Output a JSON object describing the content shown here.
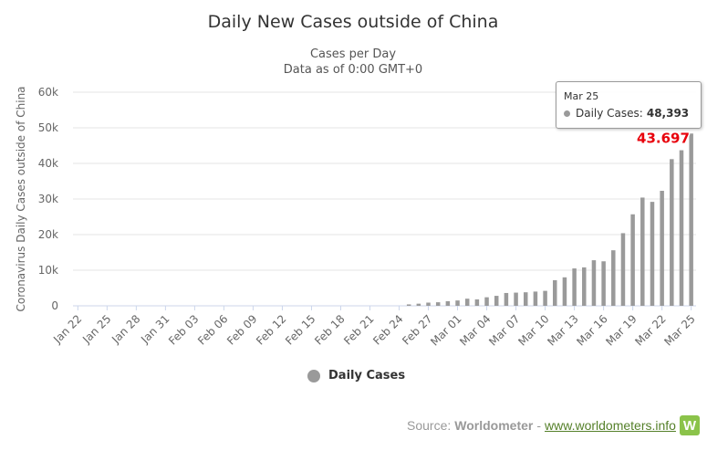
{
  "chart_data": {
    "type": "bar",
    "title": "Daily New Cases outside of China",
    "subtitle": "Cases per Day",
    "subtitle2": "Data as of 0:00 GMT+0",
    "ylabel": "Coronavirus Daily Cases outside of China",
    "ylim": [
      0,
      60000
    ],
    "yticks": [
      "0",
      "10k",
      "20k",
      "30k",
      "40k",
      "50k",
      "60k"
    ],
    "ytick_values": [
      0,
      10000,
      20000,
      30000,
      40000,
      50000,
      60000
    ],
    "xtick_labels": [
      "Jan 22",
      "Jan 25",
      "Jan 28",
      "Jan 31",
      "Feb 03",
      "Feb 06",
      "Feb 09",
      "Feb 12",
      "Feb 15",
      "Feb 18",
      "Feb 21",
      "Feb 24",
      "Feb 27",
      "Mar 01",
      "Mar 04",
      "Mar 07",
      "Mar 10",
      "Mar 13",
      "Mar 16",
      "Mar 19",
      "Mar 22",
      "Mar 25"
    ],
    "categories": [
      "Jan 22",
      "Jan 23",
      "Jan 24",
      "Jan 25",
      "Jan 26",
      "Jan 27",
      "Jan 28",
      "Jan 29",
      "Jan 30",
      "Jan 31",
      "Feb 01",
      "Feb 02",
      "Feb 03",
      "Feb 04",
      "Feb 05",
      "Feb 06",
      "Feb 07",
      "Feb 08",
      "Feb 09",
      "Feb 10",
      "Feb 11",
      "Feb 12",
      "Feb 13",
      "Feb 14",
      "Feb 15",
      "Feb 16",
      "Feb 17",
      "Feb 18",
      "Feb 19",
      "Feb 20",
      "Feb 21",
      "Feb 22",
      "Feb 23",
      "Feb 24",
      "Feb 25",
      "Feb 26",
      "Feb 27",
      "Feb 28",
      "Feb 29",
      "Mar 01",
      "Mar 02",
      "Mar 03",
      "Mar 04",
      "Mar 05",
      "Mar 06",
      "Mar 07",
      "Mar 08",
      "Mar 09",
      "Mar 10",
      "Mar 11",
      "Mar 12",
      "Mar 13",
      "Mar 14",
      "Mar 15",
      "Mar 16",
      "Mar 17",
      "Mar 18",
      "Mar 19",
      "Mar 20",
      "Mar 21",
      "Mar 22",
      "Mar 23",
      "Mar 24",
      "Mar 25"
    ],
    "series": [
      {
        "name": "Daily Cases",
        "color": "#9a9a9a",
        "values": [
          0,
          0,
          0,
          0,
          0,
          0,
          0,
          0,
          0,
          0,
          0,
          0,
          0,
          0,
          0,
          0,
          0,
          0,
          0,
          0,
          0,
          0,
          0,
          0,
          0,
          0,
          0,
          0,
          0,
          0,
          0,
          0,
          0,
          0,
          400,
          600,
          900,
          1000,
          1300,
          1500,
          2000,
          1800,
          2400,
          2800,
          3600,
          3700,
          3800,
          4000,
          4200,
          7200,
          8000,
          10500,
          10800,
          12800,
          12500,
          15600,
          20400,
          25700,
          30400,
          29200,
          32300,
          41200,
          43697,
          48393
        ]
      }
    ],
    "annotation": {
      "category": "Mar 24",
      "text": "43.697",
      "color": "#e8000b"
    },
    "tooltip": {
      "date": "Mar 25",
      "series": "Daily Cases:",
      "value": "48,393"
    },
    "legend": "bottom-center",
    "grid": true
  },
  "source": {
    "prefix": "Source:",
    "name": "Worldometer",
    "sep": "-",
    "link": "www.worldometers.info",
    "logo_letter": "W"
  }
}
